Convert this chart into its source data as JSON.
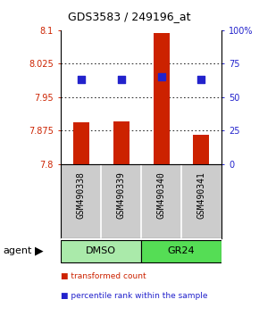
{
  "title": "GDS3583 / 249196_at",
  "samples": [
    "GSM490338",
    "GSM490339",
    "GSM490340",
    "GSM490341"
  ],
  "bar_values": [
    7.893,
    7.896,
    8.093,
    7.865
  ],
  "bar_baseline": 7.8,
  "percentile_values": [
    63,
    63,
    65,
    63
  ],
  "ylim_left": [
    7.8,
    8.1
  ],
  "ylim_right": [
    0,
    100
  ],
  "yticks_left": [
    7.8,
    7.875,
    7.95,
    8.025,
    8.1
  ],
  "yticks_right": [
    0,
    25,
    50,
    75,
    100
  ],
  "ytick_labels_left": [
    "7.8",
    "7.875",
    "7.95",
    "8.025",
    "8.1"
  ],
  "ytick_labels_right": [
    "0",
    "25",
    "50",
    "75",
    "100%"
  ],
  "grid_ticks": [
    7.875,
    7.95,
    8.025
  ],
  "bar_color": "#cc2200",
  "dot_color": "#2222cc",
  "left_tick_color": "#cc2200",
  "right_tick_color": "#2222cc",
  "groups": [
    {
      "label": "DMSO",
      "samples": [
        0,
        1
      ],
      "color": "#aaeaaa"
    },
    {
      "label": "GR24",
      "samples": [
        2,
        3
      ],
      "color": "#55dd55"
    }
  ],
  "agent_label": "agent",
  "legend_items": [
    {
      "color": "#cc2200",
      "label": "transformed count"
    },
    {
      "color": "#2222cc",
      "label": "percentile rank within the sample"
    }
  ],
  "background_color": "#ffffff",
  "sample_box_color": "#cccccc",
  "bar_width": 0.4
}
